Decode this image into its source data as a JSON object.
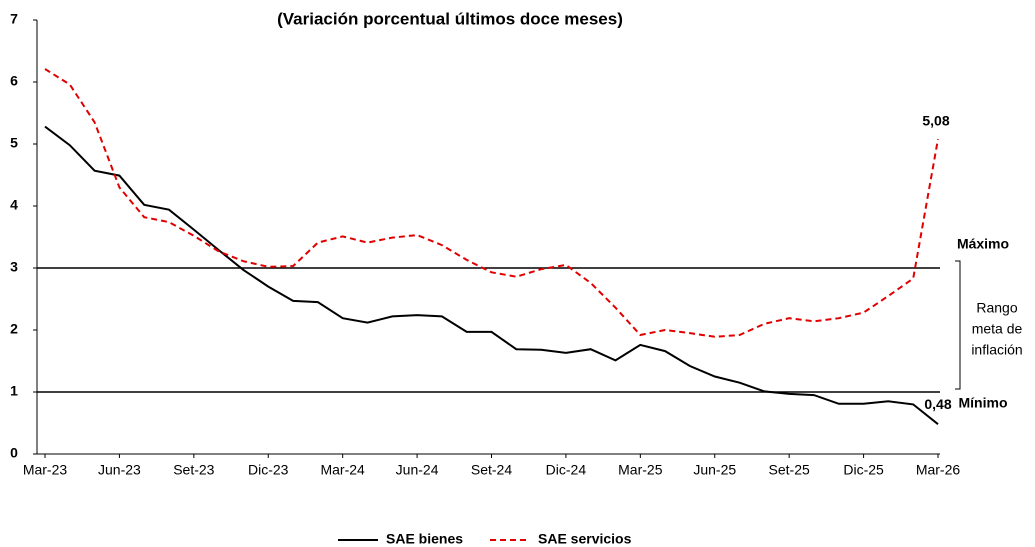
{
  "chart_data": {
    "type": "line",
    "title": "(Variación porcentual últimos doce meses)",
    "categories": [
      "Mar-23",
      null,
      null,
      "Jun-23",
      null,
      null,
      "Set-23",
      null,
      null,
      "Dic-23",
      null,
      null,
      "Mar-24",
      null,
      null,
      "Jun-24",
      null,
      null,
      "Set-24",
      null,
      null,
      "Dic-24",
      null,
      null,
      "Mar-25",
      null,
      null,
      "Jun-25",
      null,
      null,
      "Set-25",
      null,
      null,
      "Dic-25",
      null,
      null,
      "Mar-26"
    ],
    "series": [
      {
        "name": "SAE bienes",
        "color": "#000000",
        "dash": false,
        "values": [
          5.28,
          4.98,
          4.57,
          4.49,
          4.02,
          3.94,
          3.62,
          3.29,
          2.97,
          2.7,
          2.47,
          2.45,
          2.19,
          2.12,
          2.22,
          2.24,
          2.22,
          1.97,
          1.97,
          1.69,
          1.68,
          1.63,
          1.69,
          1.51,
          1.76,
          1.66,
          1.42,
          1.25,
          1.15,
          1.01,
          0.97,
          0.95,
          0.81,
          0.81,
          0.85,
          0.8,
          0.48
        ],
        "value_labels": [
          null,
          null,
          null,
          null,
          null,
          null,
          null,
          null,
          null,
          null,
          null,
          null,
          null,
          null,
          null,
          null,
          null,
          null,
          null,
          null,
          null,
          null,
          null,
          null,
          null,
          null,
          null,
          null,
          null,
          null,
          null,
          null,
          null,
          null,
          null,
          null,
          "0,48"
        ]
      },
      {
        "name": "SAE servicios",
        "color": "#e00000",
        "dash": true,
        "values": [
          6.21,
          5.96,
          5.35,
          4.3,
          3.82,
          3.74,
          3.52,
          3.27,
          3.11,
          3.02,
          3.03,
          3.41,
          3.51,
          3.41,
          3.49,
          3.53,
          3.37,
          3.13,
          2.93,
          2.86,
          2.98,
          3.05,
          2.76,
          2.36,
          1.92,
          2.0,
          1.95,
          1.89,
          1.92,
          2.1,
          2.19,
          2.14,
          2.19,
          2.28,
          2.55,
          2.83,
          5.08
        ],
        "value_labels": [
          null,
          null,
          null,
          null,
          null,
          null,
          null,
          null,
          null,
          null,
          null,
          null,
          null,
          null,
          null,
          null,
          null,
          null,
          null,
          null,
          null,
          null,
          null,
          null,
          null,
          null,
          null,
          null,
          null,
          null,
          null,
          null,
          null,
          null,
          null,
          null,
          "5,08"
        ]
      }
    ],
    "reference_lines": [
      {
        "value": 3,
        "label": "Máximo"
      },
      {
        "value": 1,
        "label": "Mínimo"
      }
    ],
    "range_label": [
      "Rango",
      "meta de",
      "inflación"
    ],
    "ylim": [
      0,
      7
    ],
    "yticks": [
      0,
      1,
      2,
      3,
      4,
      5,
      6,
      7
    ],
    "grid": false,
    "legend": "bottom"
  }
}
